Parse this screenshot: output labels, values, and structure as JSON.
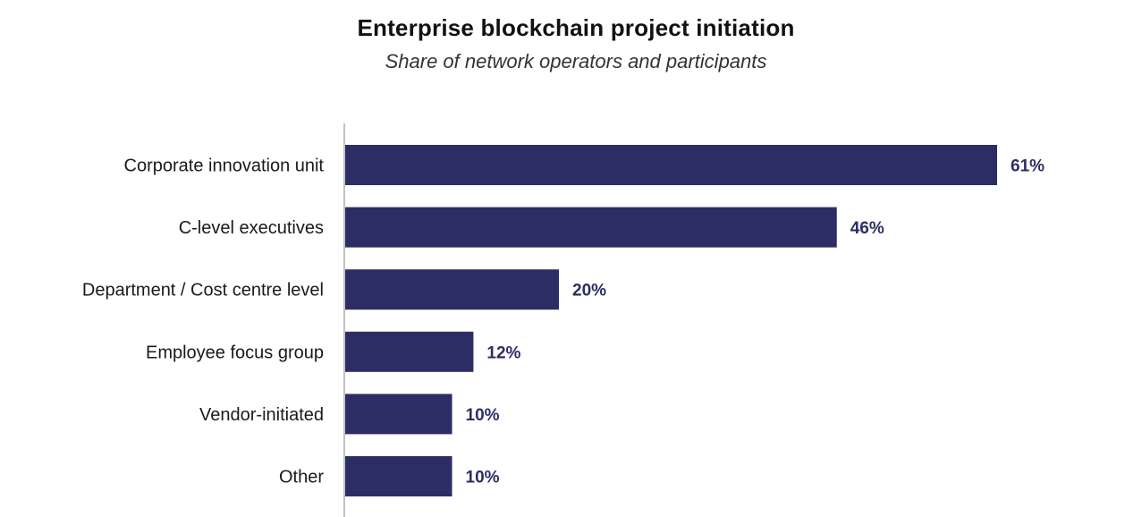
{
  "chart_data": {
    "type": "bar",
    "orientation": "horizontal",
    "title": "Enterprise blockchain project initiation",
    "subtitle": "Share of network operators and participants",
    "categories": [
      "Corporate innovation unit",
      "C-level executives",
      "Department / Cost centre level",
      "Employee focus group",
      "Vendor-initiated",
      "Other"
    ],
    "values": [
      61,
      46,
      20,
      12,
      10,
      10
    ],
    "value_labels": [
      "61%",
      "46%",
      "20%",
      "12%",
      "10%",
      "10%"
    ],
    "unit": "%",
    "xlim": [
      0,
      61
    ],
    "grid": false,
    "xlabel": "",
    "ylabel": ""
  },
  "colors": {
    "bar": "#2d2d66",
    "value_label": "#2d2d66",
    "axis": "#9a9a9a"
  }
}
